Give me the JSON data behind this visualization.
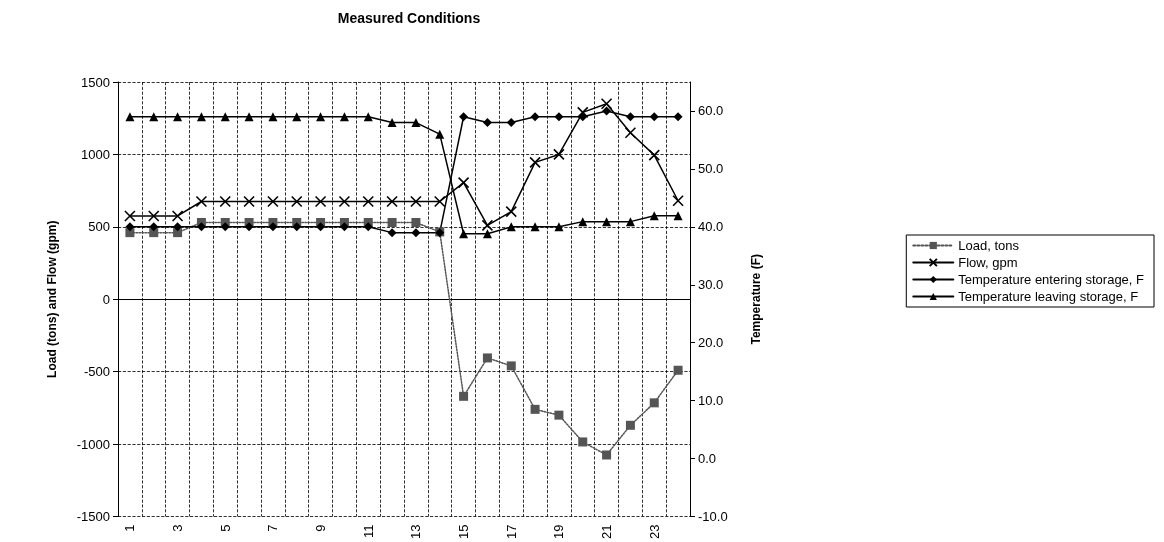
{
  "chart_data": {
    "type": "line",
    "title": "Measured Conditions",
    "categories": [
      "1",
      null,
      "3",
      null,
      "5",
      null,
      "7",
      null,
      "9",
      null,
      "11",
      null,
      "13",
      null,
      "15",
      null,
      "17",
      null,
      "19",
      null,
      "21",
      null,
      "23",
      null
    ],
    "ylabel": "Load (tons) and Flow (gpm)",
    "y2label": "Temperature (F)",
    "ylim": [
      -1500,
      1500
    ],
    "yticks": [
      -1500,
      -1000,
      -500,
      0,
      500,
      1000,
      1500
    ],
    "y2lim": [
      -10,
      65
    ],
    "y2ticks": [
      {
        "value": -10,
        "label": "-10.0"
      },
      {
        "value": 0,
        "label": "0.0"
      },
      {
        "value": 10,
        "label": "10.0"
      },
      {
        "value": 20,
        "label": "20.0"
      },
      {
        "value": 30,
        "label": "30.0"
      },
      {
        "value": 40,
        "label": "40.0"
      },
      {
        "value": 50,
        "label": "50.0"
      },
      {
        "value": 60,
        "label": "60.0"
      }
    ],
    "grid": true,
    "legend": "right",
    "series": [
      {
        "name": "Load, tons",
        "color": "#555555",
        "marker": "square",
        "line_style": "dotted",
        "values": [
          460,
          460,
          460,
          530,
          530,
          530,
          530,
          530,
          530,
          530,
          530,
          530,
          530,
          465,
          -670,
          -405,
          -460,
          -760,
          -800,
          -985,
          -1075,
          -870,
          -715,
          -490
        ]
      },
      {
        "name": "Flow, gpm",
        "color": "#000000",
        "marker": "cross",
        "line_style": "solid",
        "values": [
          575,
          575,
          575,
          675,
          675,
          675,
          675,
          675,
          675,
          675,
          675,
          675,
          675,
          675,
          805,
          510,
          605,
          945,
          1000,
          1290,
          1350,
          1150,
          995,
          680
        ]
      },
      {
        "name": "Temperature entering storage, F",
        "color": "#000000",
        "marker": "diamond",
        "line_style": "solid",
        "axis": "y2",
        "values": [
          40,
          40,
          40,
          40,
          40,
          40,
          40,
          40,
          40,
          40,
          40,
          39,
          39,
          39,
          59,
          58,
          58,
          59,
          59,
          59,
          60,
          59,
          59,
          59
        ]
      },
      {
        "name": "Temperature leaving storage, F",
        "color": "#000000",
        "marker": "triangle",
        "line_style": "solid",
        "axis": "y2",
        "values": [
          59,
          59,
          59,
          59,
          59,
          59,
          59,
          59,
          59,
          59,
          59,
          58,
          58,
          56,
          38.8,
          38.8,
          40,
          40,
          40,
          40.9,
          40.9,
          40.9,
          41.9,
          41.9
        ]
      }
    ]
  }
}
